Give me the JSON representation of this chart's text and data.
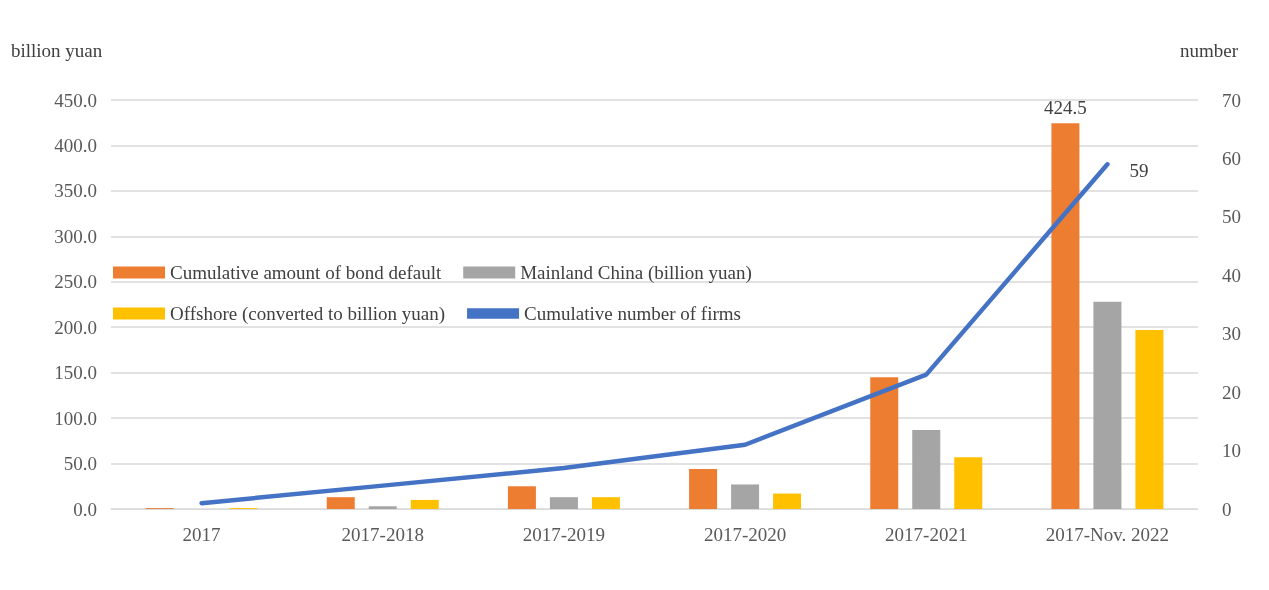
{
  "chart_data": {
    "type": "bar",
    "ylabel": "billion yuan",
    "y2label": "number",
    "categories": [
      "2017",
      "2017-2018",
      "2017-2019",
      "2017-2020",
      "2017-2021",
      "2017-Nov. 2022"
    ],
    "series": [
      {
        "name": "Cumulative amount of bond default",
        "color": "#ed7d31",
        "values": [
          1,
          13,
          25,
          44,
          145,
          424.5
        ],
        "value_labels": [
          null,
          null,
          null,
          null,
          null,
          "424.5"
        ]
      },
      {
        "name": "Mainland China (billion yuan)",
        "color": "#a5a5a5",
        "values": [
          0,
          3,
          13,
          27,
          87,
          228
        ]
      },
      {
        "name": "Offshore (converted to billion yuan)",
        "color": "#ffc000",
        "values": [
          1,
          10,
          13,
          17,
          57,
          197
        ]
      },
      {
        "name": "Cumulative number of firms",
        "type": "line",
        "axis": "y2",
        "color": "#4472c4",
        "values": [
          1,
          4,
          7,
          11,
          23,
          59
        ],
        "value_labels": [
          null,
          null,
          null,
          null,
          null,
          "59"
        ]
      }
    ],
    "ylim": [
      0,
      450
    ],
    "yticks": [
      {
        "value": 0,
        "label": "0.0"
      },
      {
        "value": 50,
        "label": "50.0"
      },
      {
        "value": 100,
        "label": "100.0"
      },
      {
        "value": 150,
        "label": "150.0"
      },
      {
        "value": 200,
        "label": "200.0"
      },
      {
        "value": 250,
        "label": "250.0"
      },
      {
        "value": 300,
        "label": "300.0"
      },
      {
        "value": 350,
        "label": "350.0"
      },
      {
        "value": 400,
        "label": "400.0"
      },
      {
        "value": 450,
        "label": "450.0"
      }
    ],
    "y2lim": [
      0,
      70
    ],
    "y2ticks": [
      0,
      10,
      20,
      30,
      40,
      50,
      60,
      70
    ],
    "grid": "y",
    "legend": "left",
    "marker": "none",
    "line_style": "solid"
  }
}
